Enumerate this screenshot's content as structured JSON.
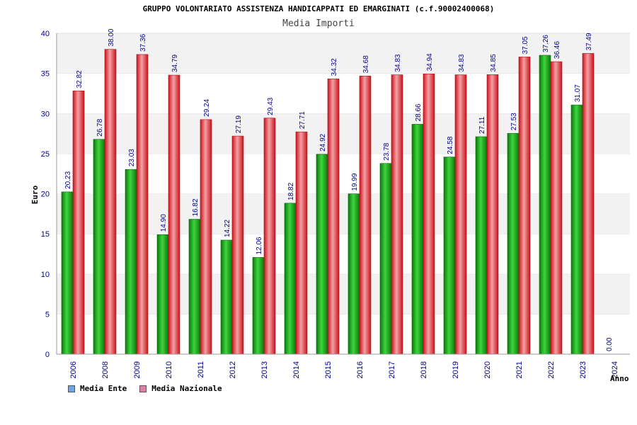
{
  "colors": {
    "ente": "#2bb02b",
    "nazionale": "#e8343a",
    "legend_ente": "#6fa8e8",
    "legend_nazionale": "#e07fa8",
    "band": "#f2f2f2",
    "grid": "#dddddd",
    "tick": "#00008b"
  },
  "chart_data": {
    "type": "bar",
    "title": "GRUPPO VOLONTARIATO ASSISTENZA HANDICAPPATI ED EMARGINATI (c.f.90002400068)",
    "subtitle": "Media Importi",
    "xlabel": "Anno",
    "ylabel": "Euro",
    "ylim": [
      0,
      40
    ],
    "yticks": [
      0,
      5,
      10,
      15,
      20,
      25,
      30,
      35,
      40
    ],
    "categories": [
      "2006",
      "2008",
      "2009",
      "2010",
      "2011",
      "2012",
      "2013",
      "2014",
      "2015",
      "2016",
      "2017",
      "2018",
      "2019",
      "2020",
      "2021",
      "2022",
      "2023",
      "2024"
    ],
    "series": [
      {
        "name": "Media Ente",
        "values": [
          20.23,
          26.78,
          23.03,
          14.9,
          16.82,
          14.22,
          12.06,
          18.82,
          24.92,
          19.99,
          23.78,
          28.66,
          24.58,
          27.11,
          27.53,
          37.26,
          31.07,
          0.0
        ],
        "labels": [
          "20.23",
          "26.78",
          "23.03",
          "14.90",
          "16.82",
          "14.22",
          "12.06",
          "18.82",
          "24.92",
          "19.99",
          "23.78",
          "28.66",
          "24.58",
          "27.11",
          "27.53",
          "37.26",
          "31.07",
          "0.00"
        ]
      },
      {
        "name": "Media Nazionale",
        "values": [
          32.82,
          38.0,
          37.36,
          34.79,
          29.24,
          27.19,
          29.43,
          27.71,
          34.32,
          34.68,
          34.83,
          34.94,
          34.83,
          34.85,
          37.05,
          36.46,
          37.49,
          null
        ],
        "labels": [
          "32.82",
          "38.00",
          "37.36",
          "34.79",
          "29.24",
          "27.19",
          "29.43",
          "27.71",
          "34.32",
          "34.68",
          "34.83",
          "34.94",
          "34.83",
          "34.85",
          "37.05",
          "36.46",
          "37.49",
          ""
        ]
      }
    ],
    "legend": [
      "Media Ente",
      "Media Nazionale"
    ],
    "legend_position": "bottom-left"
  }
}
